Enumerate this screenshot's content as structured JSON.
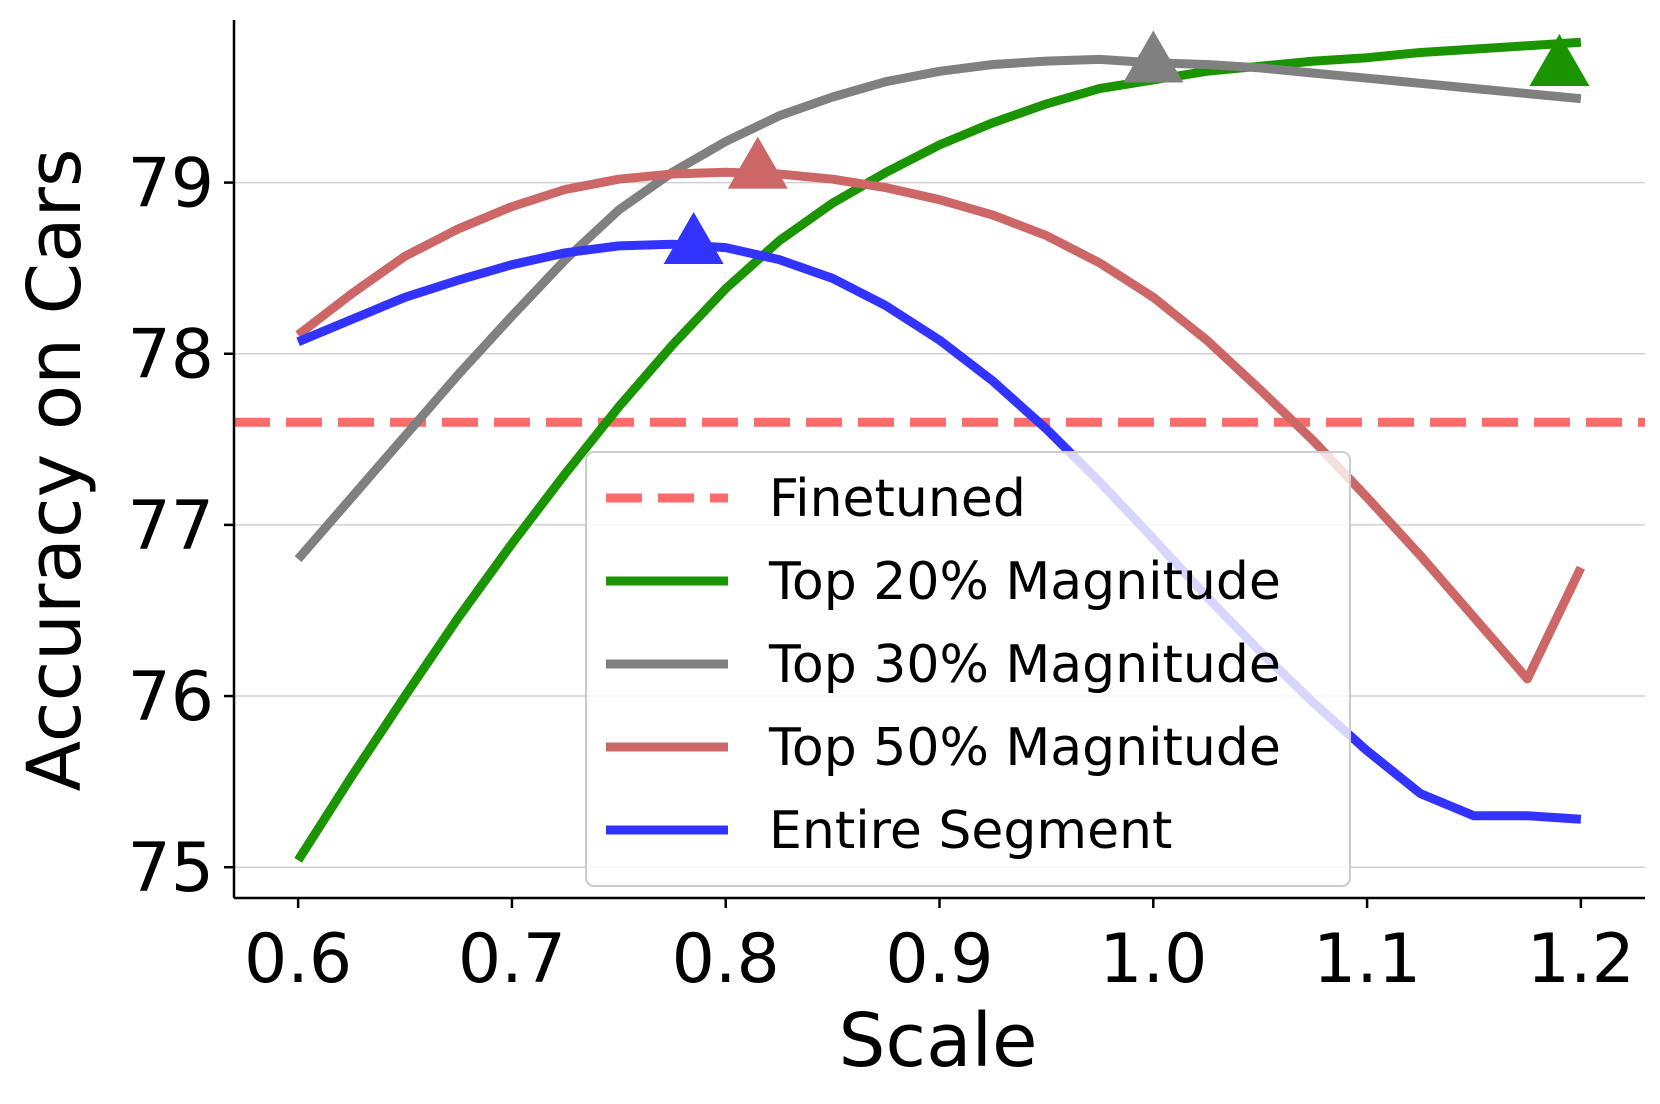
{
  "chart_data": {
    "type": "line",
    "xlabel": "Scale",
    "ylabel": "Accuracy on Cars",
    "xlim": [
      0.57,
      1.23
    ],
    "ylim": [
      74.82,
      79.95
    ],
    "xticks": [
      0.6,
      0.7,
      0.8,
      0.9,
      1.0,
      1.1,
      1.2
    ],
    "xtick_labels": [
      "0.6",
      "0.7",
      "0.8",
      "0.9",
      "1.0",
      "1.1",
      "1.2"
    ],
    "yticks": [
      75,
      76,
      77,
      78,
      79
    ],
    "ytick_labels": [
      "75",
      "76",
      "77",
      "78",
      "79"
    ],
    "grid": "horizontal",
    "legend_position": "lower-center",
    "reference_line": {
      "name": "Finetuned",
      "y": 77.6,
      "color": "#ff6b6b",
      "style": "dashed"
    },
    "series": [
      {
        "name": "Top 20% Magnitude",
        "color": "#1a9400",
        "x": [
          0.6,
          0.625,
          0.65,
          0.675,
          0.7,
          0.725,
          0.75,
          0.775,
          0.8,
          0.825,
          0.85,
          0.875,
          0.9,
          0.925,
          0.95,
          0.975,
          1.0,
          1.025,
          1.05,
          1.075,
          1.1,
          1.125,
          1.15,
          1.175,
          1.2
        ],
        "y": [
          75.04,
          75.53,
          76.0,
          76.46,
          76.89,
          77.3,
          77.69,
          78.05,
          78.38,
          78.66,
          78.88,
          79.06,
          79.22,
          79.35,
          79.46,
          79.55,
          79.6,
          79.65,
          79.68,
          79.71,
          79.73,
          79.76,
          79.78,
          79.8,
          79.82
        ],
        "peak": {
          "x": 1.19,
          "y": 79.68
        }
      },
      {
        "name": "Top 30% Magnitude",
        "color": "#808080",
        "x": [
          0.6,
          0.625,
          0.65,
          0.675,
          0.7,
          0.725,
          0.75,
          0.775,
          0.8,
          0.825,
          0.85,
          0.875,
          0.9,
          0.925,
          0.95,
          0.975,
          1.0,
          1.025,
          1.05,
          1.075,
          1.1,
          1.125,
          1.15,
          1.175,
          1.2
        ],
        "y": [
          76.8,
          77.16,
          77.52,
          77.88,
          78.22,
          78.55,
          78.84,
          79.06,
          79.24,
          79.39,
          79.5,
          79.59,
          79.65,
          79.69,
          79.71,
          79.72,
          79.7,
          79.69,
          79.67,
          79.64,
          79.61,
          79.58,
          79.55,
          79.52,
          79.49
        ],
        "peak": {
          "x": 1.0,
          "y": 79.7
        }
      },
      {
        "name": "Top 50% Magnitude",
        "color": "#cd6666",
        "x": [
          0.6,
          0.625,
          0.65,
          0.675,
          0.7,
          0.725,
          0.75,
          0.775,
          0.8,
          0.825,
          0.85,
          0.875,
          0.9,
          0.925,
          0.95,
          0.975,
          1.0,
          1.025,
          1.05,
          1.075,
          1.1,
          1.125,
          1.15,
          1.175,
          1.2
        ],
        "y": [
          78.11,
          78.35,
          78.57,
          78.73,
          78.86,
          78.96,
          79.02,
          79.05,
          79.06,
          79.05,
          79.02,
          78.97,
          78.9,
          78.81,
          78.69,
          78.53,
          78.33,
          78.08,
          77.79,
          77.49,
          77.16,
          76.82,
          76.46,
          76.1,
          76.75
        ],
        "peak": {
          "x": 0.815,
          "y": 79.08
        }
      },
      {
        "name": "Entire Segment",
        "color": "#3333ff",
        "x": [
          0.6,
          0.625,
          0.65,
          0.675,
          0.7,
          0.725,
          0.75,
          0.775,
          0.8,
          0.825,
          0.85,
          0.875,
          0.9,
          0.925,
          0.95,
          0.975,
          1.0,
          1.025,
          1.05,
          1.075,
          1.1,
          1.125,
          1.15,
          1.175,
          1.2
        ],
        "y": [
          78.07,
          78.2,
          78.33,
          78.43,
          78.52,
          78.59,
          78.63,
          78.64,
          78.62,
          78.55,
          78.44,
          78.28,
          78.08,
          77.84,
          77.56,
          77.25,
          76.92,
          76.58,
          76.26,
          75.96,
          75.68,
          75.43,
          75.3,
          75.3,
          75.28
        ],
        "peak": {
          "x": 0.785,
          "y": 78.64
        }
      }
    ]
  }
}
